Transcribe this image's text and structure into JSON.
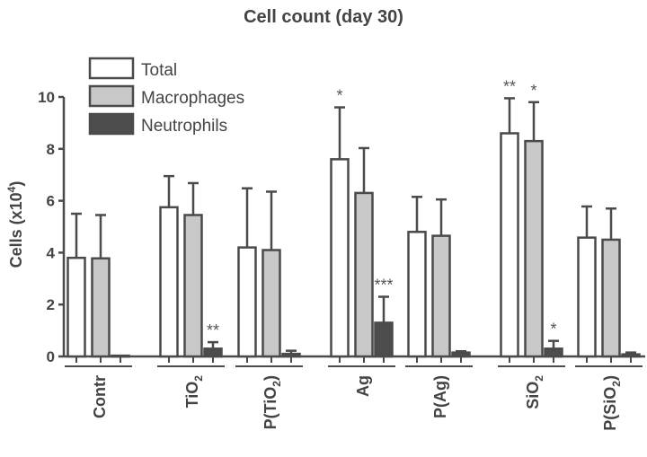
{
  "chart_data": {
    "type": "bar",
    "title": "Cell count (day 30)",
    "ylabel": "Cells (x10",
    "ylabel_sup": "4",
    "ylabel_close": ")",
    "xlabel": "",
    "ylim": [
      0,
      10
    ],
    "yticks": [
      0,
      2,
      4,
      6,
      8,
      10
    ],
    "legend_position": "top-left",
    "categories": [
      "Contr",
      "TiO2",
      "P(TiO2)",
      "Ag",
      "P(Ag)",
      "SiO2",
      "P(SiO2)"
    ],
    "category_labels": [
      {
        "main": "Contr",
        "sub": "",
        "tail": ""
      },
      {
        "main": "TiO",
        "sub": "2",
        "tail": ""
      },
      {
        "main": "P(TiO",
        "sub": "2",
        "tail": ")"
      },
      {
        "main": "Ag",
        "sub": "",
        "tail": ""
      },
      {
        "main": "P(Ag)",
        "sub": "",
        "tail": ""
      },
      {
        "main": "SiO",
        "sub": "2",
        "tail": ""
      },
      {
        "main": "P(SiO",
        "sub": "2",
        "tail": ")"
      }
    ],
    "series": [
      {
        "name": "Total",
        "color": "#ffffff",
        "values": [
          3.8,
          5.75,
          4.2,
          7.6,
          4.8,
          8.6,
          4.58
        ],
        "error": [
          1.7,
          1.2,
          2.28,
          2.0,
          1.35,
          1.35,
          1.2
        ],
        "significance": [
          "",
          "",
          "",
          "*",
          "",
          "**",
          ""
        ]
      },
      {
        "name": "Macrophages",
        "color": "#c8c8c8",
        "values": [
          3.78,
          5.45,
          4.1,
          6.3,
          4.65,
          8.3,
          4.5
        ],
        "error": [
          1.67,
          1.23,
          2.25,
          1.73,
          1.4,
          1.5,
          1.2
        ],
        "significance": [
          "",
          "",
          "",
          "",
          "",
          "*",
          ""
        ]
      },
      {
        "name": "Neutrophils",
        "color": "#4d4d4d",
        "values": [
          0.03,
          0.3,
          0.1,
          1.3,
          0.15,
          0.3,
          0.08
        ],
        "error": [
          0,
          0.25,
          0.12,
          1.0,
          0.05,
          0.3,
          0.07
        ],
        "significance": [
          "",
          "**",
          "",
          "***",
          "",
          "*",
          ""
        ]
      }
    ]
  }
}
